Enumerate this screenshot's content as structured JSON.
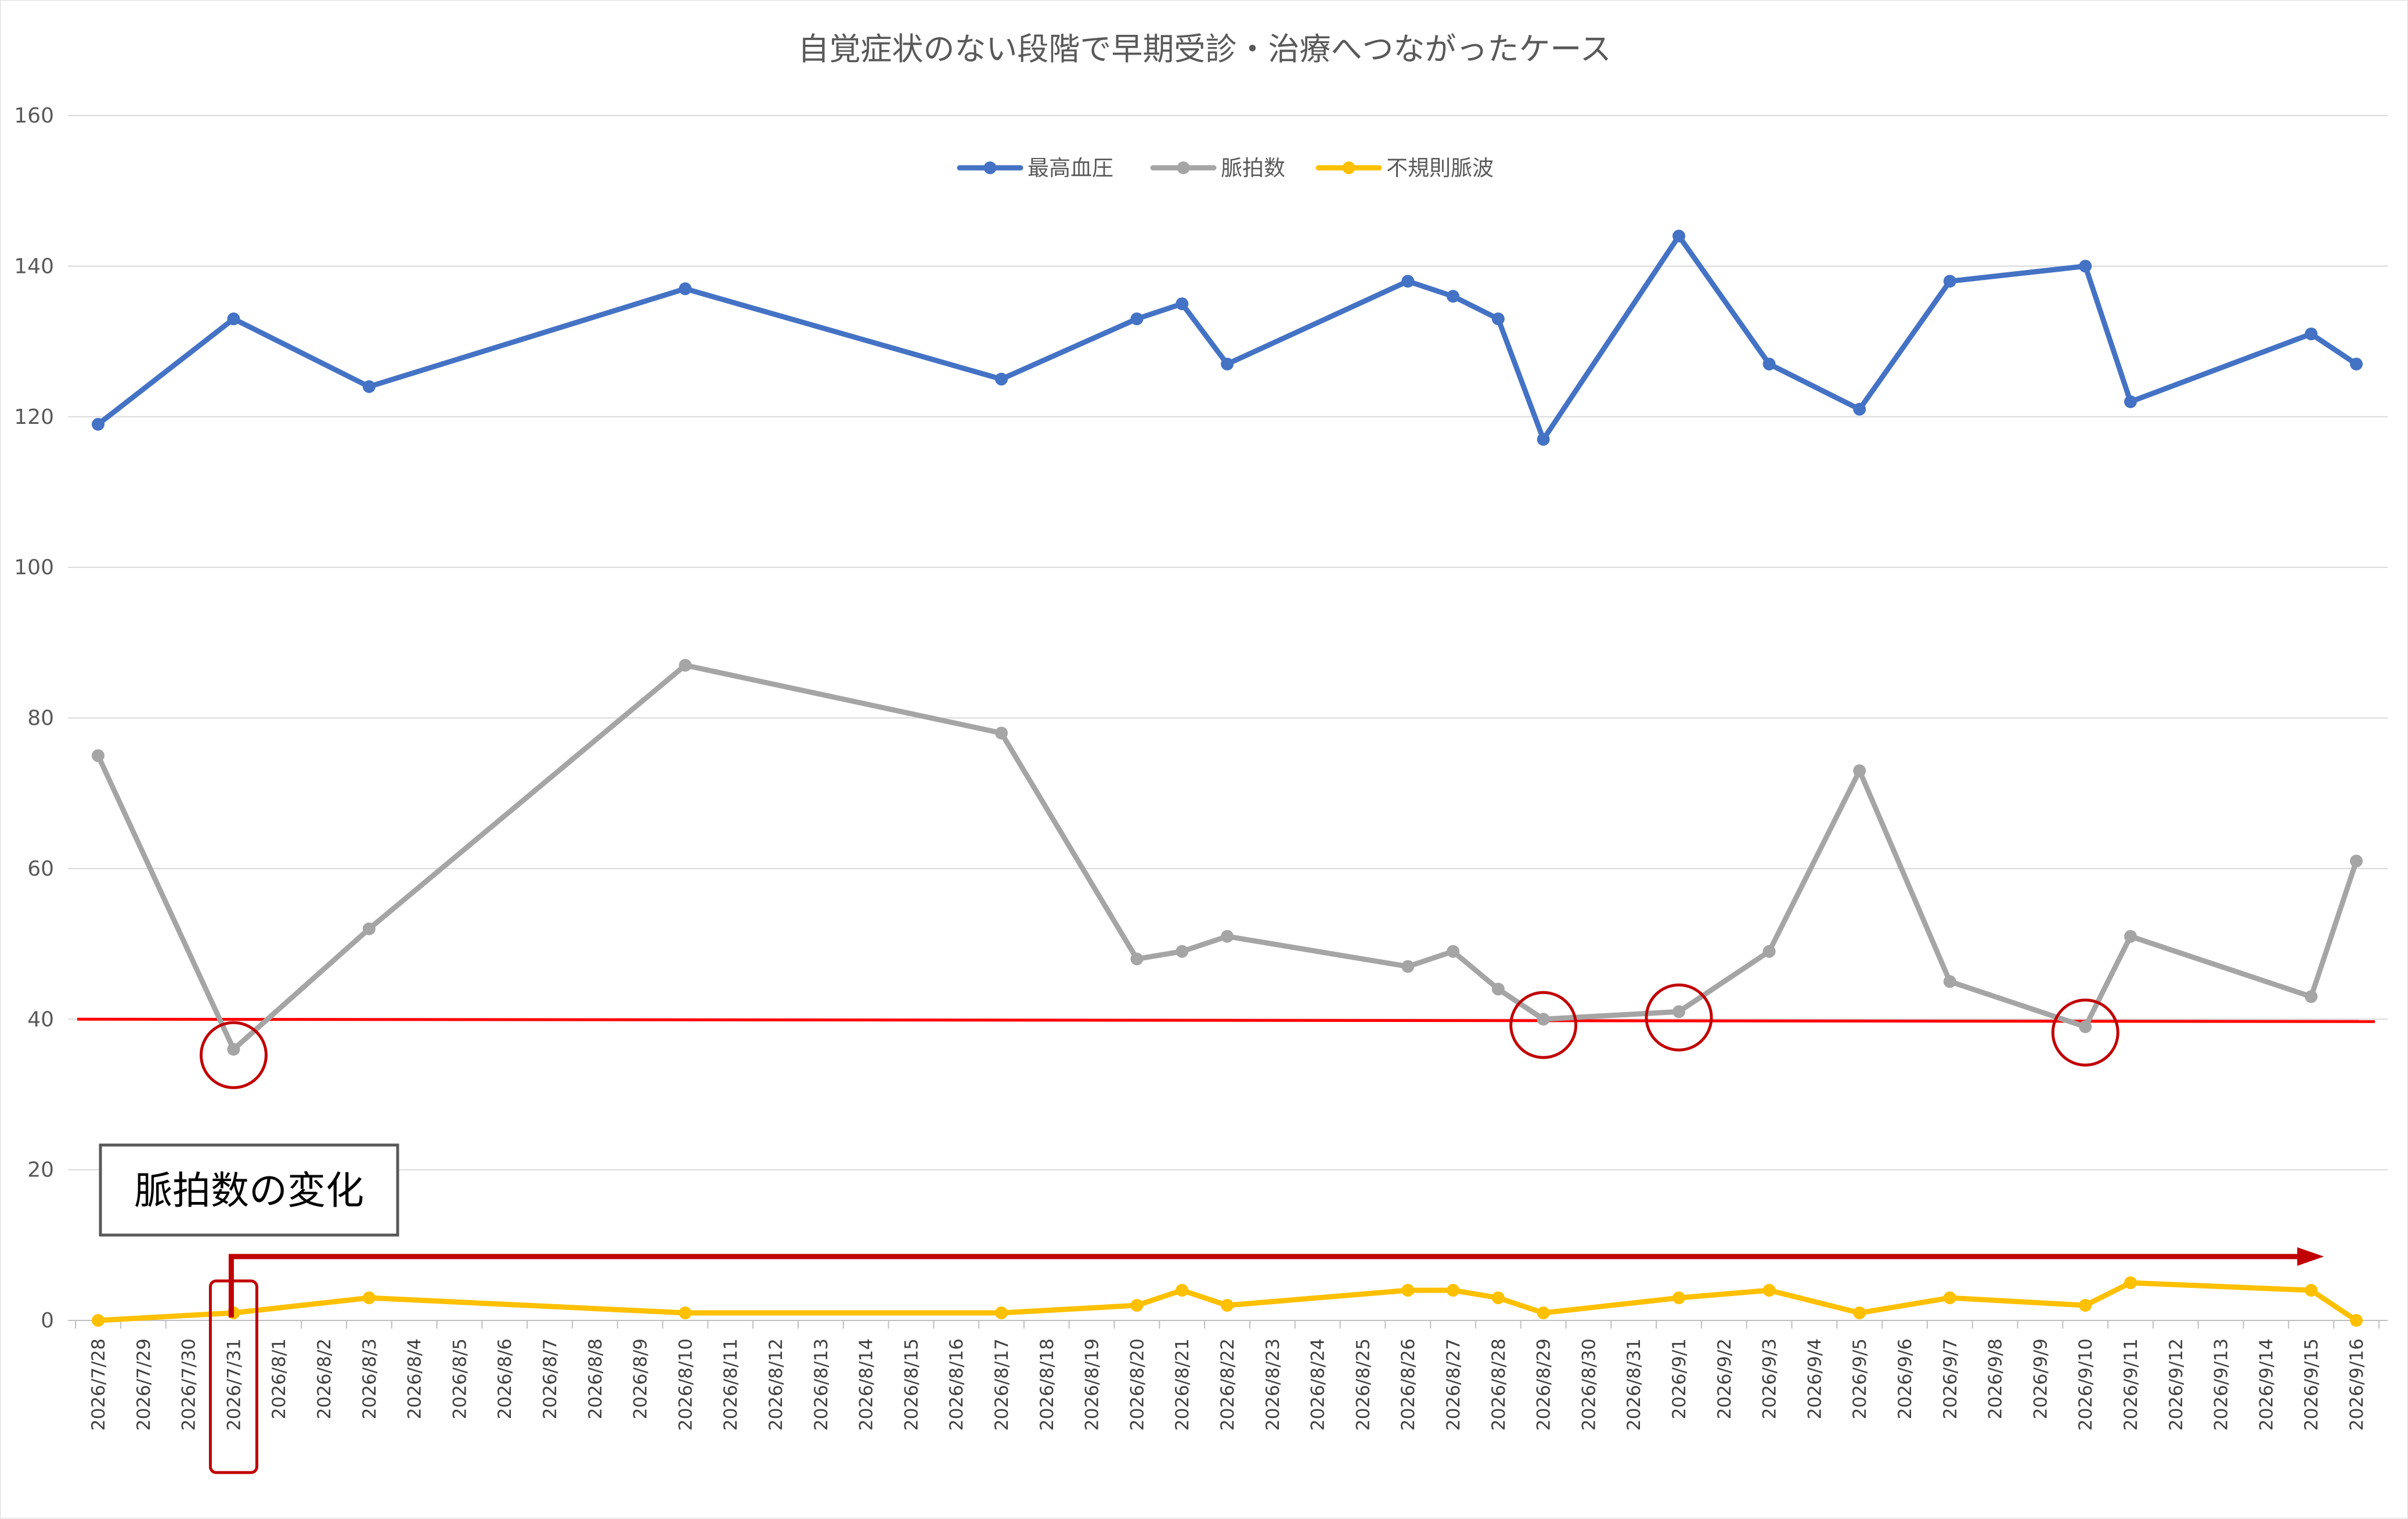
{
  "chart_data": {
    "type": "line",
    "title": "自覚症状のない段階で早期受診・治療へつながったケース",
    "categories": [
      "2026/7/28",
      "2026/7/29",
      "2026/7/30",
      "2026/7/31",
      "2026/8/1",
      "2026/8/2",
      "2026/8/3",
      "2026/8/4",
      "2026/8/5",
      "2026/8/6",
      "2026/8/7",
      "2026/8/8",
      "2026/8/9",
      "2026/8/10",
      "2026/8/11",
      "2026/8/12",
      "2026/8/13",
      "2026/8/14",
      "2026/8/15",
      "2026/8/16",
      "2026/8/17",
      "2026/8/18",
      "2026/8/19",
      "2026/8/20",
      "2026/8/21",
      "2026/8/22",
      "2026/8/23",
      "2026/8/24",
      "2026/8/25",
      "2026/8/26",
      "2026/8/27",
      "2026/8/28",
      "2026/8/29",
      "2026/8/30",
      "2026/8/31",
      "2026/9/1",
      "2026/9/2",
      "2026/9/3",
      "2026/9/4",
      "2026/9/5",
      "2026/9/6",
      "2026/9/7",
      "2026/9/8",
      "2026/9/9",
      "2026/9/10",
      "2026/9/11",
      "2026/9/12",
      "2026/9/13",
      "2026/9/14",
      "2026/9/15",
      "2026/9/16"
    ],
    "ylim": [
      0,
      160
    ],
    "yticks": [
      0,
      20,
      40,
      60,
      80,
      100,
      120,
      140,
      160
    ],
    "grid": true,
    "legend_position": "top",
    "series": [
      {
        "name": "最高血圧",
        "color": "#4472c4",
        "points": [
          [
            "2026/7/28",
            119
          ],
          [
            "2026/7/31",
            133
          ],
          [
            "2026/8/3",
            124
          ],
          [
            "2026/8/10",
            137
          ],
          [
            "2026/8/17",
            125
          ],
          [
            "2026/8/20",
            133
          ],
          [
            "2026/8/21",
            135
          ],
          [
            "2026/8/22",
            127
          ],
          [
            "2026/8/26",
            138
          ],
          [
            "2026/8/27",
            136
          ],
          [
            "2026/8/28",
            133
          ],
          [
            "2026/8/29",
            117
          ],
          [
            "2026/9/1",
            144
          ],
          [
            "2026/9/3",
            127
          ],
          [
            "2026/9/5",
            121
          ],
          [
            "2026/9/7",
            138
          ],
          [
            "2026/9/10",
            140
          ],
          [
            "2026/9/11",
            122
          ],
          [
            "2026/9/15",
            131
          ],
          [
            "2026/9/16",
            127
          ]
        ]
      },
      {
        "name": "脈拍数",
        "color": "#a5a5a5",
        "points": [
          [
            "2026/7/28",
            75
          ],
          [
            "2026/7/31",
            36
          ],
          [
            "2026/8/3",
            52
          ],
          [
            "2026/8/10",
            87
          ],
          [
            "2026/8/17",
            78
          ],
          [
            "2026/8/20",
            48
          ],
          [
            "2026/8/21",
            49
          ],
          [
            "2026/8/22",
            51
          ],
          [
            "2026/8/26",
            47
          ],
          [
            "2026/8/27",
            49
          ],
          [
            "2026/8/28",
            44
          ],
          [
            "2026/8/29",
            40
          ],
          [
            "2026/9/1",
            41
          ],
          [
            "2026/9/3",
            49
          ],
          [
            "2026/9/5",
            73
          ],
          [
            "2026/9/7",
            45
          ],
          [
            "2026/9/10",
            39
          ],
          [
            "2026/9/11",
            51
          ],
          [
            "2026/9/15",
            43
          ],
          [
            "2026/9/16",
            61
          ]
        ]
      },
      {
        "name": "不規則脈波",
        "color": "#ffc000",
        "points": [
          [
            "2026/7/28",
            0
          ],
          [
            "2026/7/31",
            1
          ],
          [
            "2026/8/3",
            3
          ],
          [
            "2026/8/10",
            1
          ],
          [
            "2026/8/17",
            1
          ],
          [
            "2026/8/20",
            2
          ],
          [
            "2026/8/21",
            4
          ],
          [
            "2026/8/22",
            2
          ],
          [
            "2026/8/26",
            4
          ],
          [
            "2026/8/27",
            4
          ],
          [
            "2026/8/28",
            3
          ],
          [
            "2026/8/29",
            1
          ],
          [
            "2026/9/1",
            3
          ],
          [
            "2026/9/3",
            4
          ],
          [
            "2026/9/5",
            1
          ],
          [
            "2026/9/7",
            3
          ],
          [
            "2026/9/10",
            2
          ],
          [
            "2026/9/11",
            5
          ],
          [
            "2026/9/15",
            4
          ],
          [
            "2026/9/16",
            0
          ]
        ]
      }
    ],
    "threshold": {
      "value": 40,
      "color": "#ff0000"
    },
    "annotations": {
      "callout_text": "脈拍数の変化",
      "highlight_color": "#c00000",
      "circled_points": [
        [
          "2026/7/31",
          36
        ],
        [
          "2026/8/29",
          40
        ],
        [
          "2026/9/1",
          41
        ],
        [
          "2026/9/10",
          39
        ]
      ],
      "highlighted_tick": "2026/7/31",
      "arrow": {
        "from": "2026/7/31",
        "to": "2026/9/15"
      }
    }
  }
}
